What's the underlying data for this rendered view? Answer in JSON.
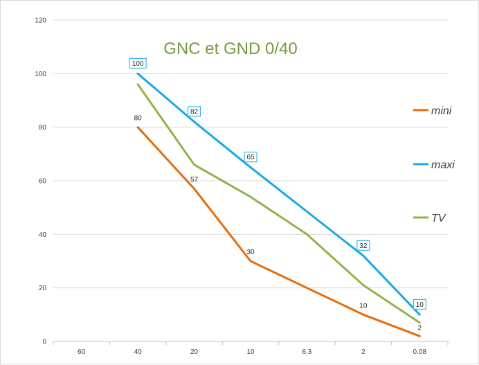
{
  "chart_data": {
    "type": "line",
    "title": "GNC et GND 0/40",
    "xlabel": "",
    "ylabel": "",
    "categories": [
      "60",
      "40",
      "20",
      "10",
      "6.3",
      "2",
      "0.08"
    ],
    "ylim": [
      0,
      120
    ],
    "yticks": [
      0,
      20,
      40,
      60,
      80,
      100,
      120
    ],
    "grid": true,
    "legend_position": "right",
    "series": [
      {
        "name": "mini",
        "color": "#e46c0a",
        "values": [
          null,
          80,
          57,
          30,
          20,
          10,
          2
        ],
        "labels": [
          null,
          "80",
          "57",
          "30",
          null,
          "10",
          "2"
        ],
        "label_style": "plain"
      },
      {
        "name": "maxi",
        "color": "#17a9e6",
        "values": [
          null,
          100,
          82,
          65,
          48.5,
          32,
          10
        ],
        "labels": [
          null,
          "100",
          "82",
          "65",
          null,
          "32",
          "10"
        ],
        "label_style": "boxed"
      },
      {
        "name": "TV",
        "color": "#8fb34a",
        "values": [
          null,
          96,
          66,
          54,
          40,
          21,
          7
        ],
        "labels": [],
        "label_style": "none"
      }
    ]
  }
}
